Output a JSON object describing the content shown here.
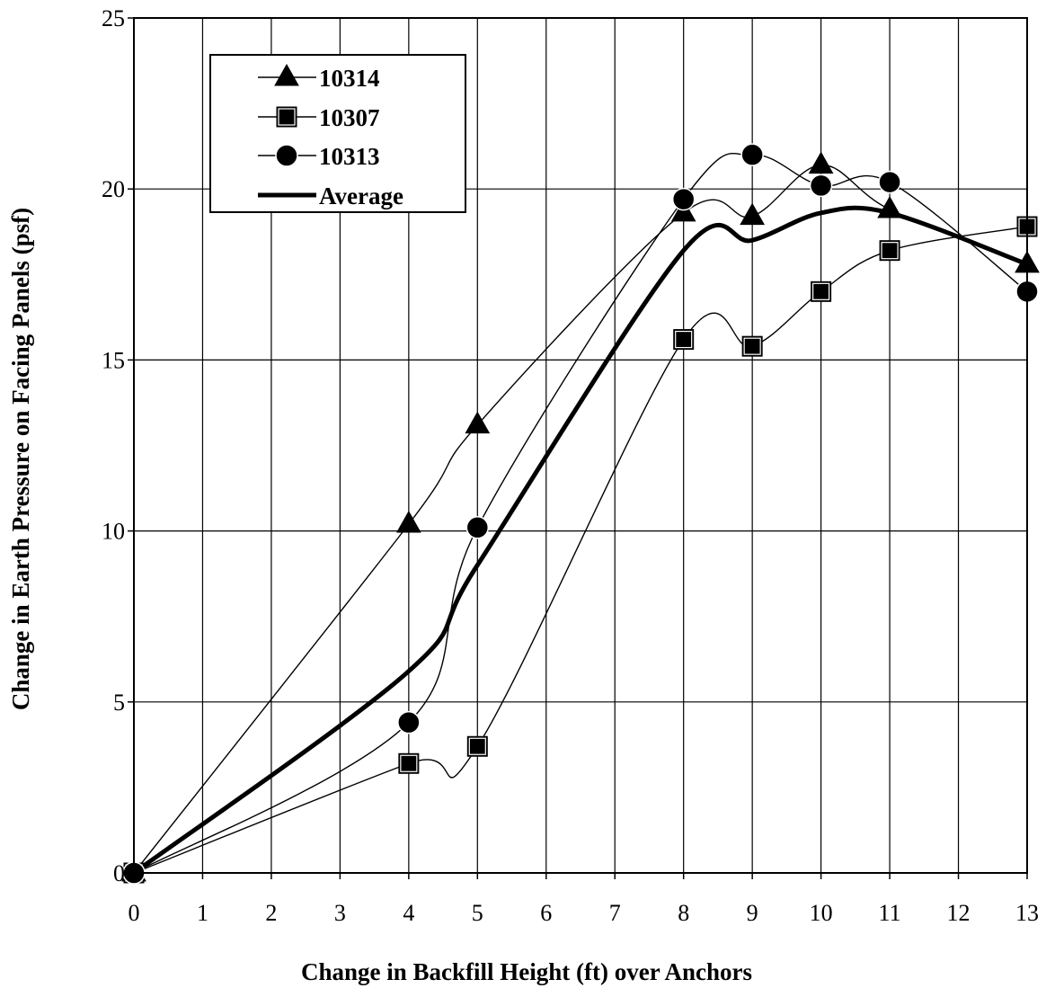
{
  "chart_data": {
    "type": "line",
    "xlabel": "Change in Backfill Height (ft) over Anchors",
    "ylabel": "Change in Earth Pressure on Facing Panels (psf)",
    "xlim": [
      0,
      13
    ],
    "ylim": [
      0,
      25
    ],
    "x_ticks": [
      "0",
      "1",
      "2",
      "3",
      "4",
      "5",
      "6",
      "7",
      "8",
      "9",
      "10",
      "11",
      "12",
      "13"
    ],
    "y_ticks": [
      "0",
      "5",
      "10",
      "15",
      "20",
      "25"
    ],
    "grid": true,
    "legend_position": "top-left",
    "series": [
      {
        "name": "10314",
        "marker": "triangle",
        "line": "thin",
        "x": [
          0,
          4,
          5,
          8,
          9,
          10,
          11,
          13
        ],
        "y": [
          0,
          10.2,
          13.1,
          19.3,
          19.2,
          20.7,
          19.4,
          17.8
        ]
      },
      {
        "name": "10307",
        "marker": "square",
        "line": "thin",
        "x": [
          0,
          4,
          5,
          8,
          9,
          10,
          11,
          13
        ],
        "y": [
          0,
          3.2,
          3.7,
          15.6,
          15.4,
          17.0,
          18.2,
          18.9
        ]
      },
      {
        "name": "10313",
        "marker": "circle",
        "line": "thin",
        "x": [
          0,
          4,
          5,
          8,
          9,
          10,
          11,
          13
        ],
        "y": [
          0,
          4.4,
          10.1,
          19.7,
          21.0,
          20.1,
          20.2,
          17.0
        ]
      },
      {
        "name": "Average",
        "marker": "none",
        "line": "thick",
        "x": [
          0,
          4,
          5,
          8,
          9,
          10,
          11,
          13
        ],
        "y": [
          0,
          5.9,
          9.0,
          18.2,
          18.5,
          19.3,
          19.3,
          17.8
        ]
      }
    ]
  }
}
